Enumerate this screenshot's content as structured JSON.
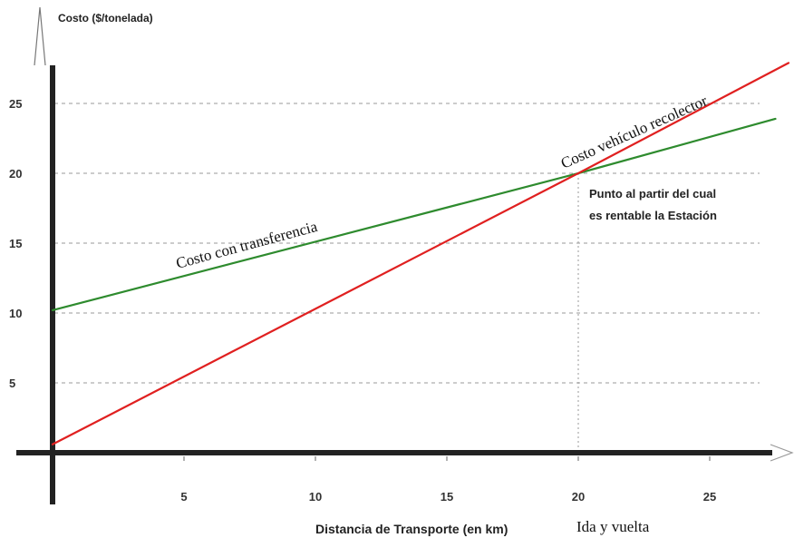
{
  "chart_data": {
    "type": "line",
    "title": "",
    "ylabel": "Costo ($/tonelada)",
    "xlabel": "Distancia de Transporte (en km)",
    "xlabel_extra": "Ida y vuelta",
    "xlim": [
      0,
      28
    ],
    "ylim": [
      0,
      28
    ],
    "x_ticks": [
      "5",
      "10",
      "15",
      "20",
      "25"
    ],
    "y_ticks": [
      "5",
      "10",
      "15",
      "20",
      "25"
    ],
    "grid": "dashed",
    "series": [
      {
        "name": "Costo con transferencia",
        "color": "#2e8b2e",
        "x": [
          0,
          20,
          27.5
        ],
        "y": [
          10.2,
          20,
          23.9
        ]
      },
      {
        "name": "Costo vehículo recolector",
        "color": "#e02020",
        "x": [
          0,
          20,
          28
        ],
        "y": [
          0.6,
          20,
          27.9
        ]
      }
    ],
    "annotations": {
      "breakeven_line1": "Punto al partir del cual",
      "breakeven_line2": "es rentable la Estación",
      "breakeven_x": 20,
      "breakeven_y": 20
    }
  }
}
